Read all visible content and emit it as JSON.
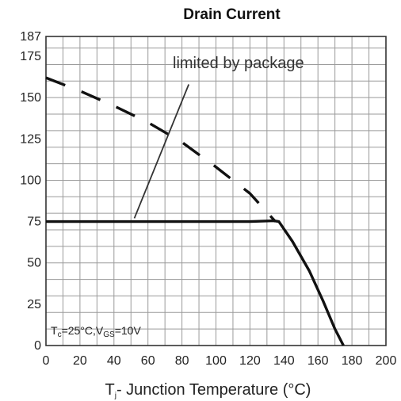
{
  "chart_data": {
    "type": "line",
    "title": "Drain Current",
    "xlabel": "T",
    "xlabel_sub": "j",
    "xlabel_rest": "- Junction Temperature (°C)",
    "xlim": [
      0,
      200
    ],
    "ylim": [
      0,
      187
    ],
    "x_ticks": [
      0,
      20,
      40,
      60,
      80,
      100,
      120,
      140,
      160,
      180,
      200
    ],
    "y_ticks": [
      0,
      25,
      50,
      75,
      100,
      125,
      150,
      175,
      187
    ],
    "x_tick_labels": [
      "0",
      "20",
      "40",
      "60",
      "80",
      "100",
      "120",
      "140",
      "160",
      "180",
      "200"
    ],
    "y_tick_labels": [
      "0",
      "25",
      "50",
      "75",
      "100",
      "125",
      "150",
      "175",
      "187"
    ],
    "grid": true,
    "series": [
      {
        "style": "dashed",
        "color": "#111111",
        "x": [
          0,
          20,
          40,
          60,
          80,
          100,
          120,
          135
        ],
        "y": [
          162,
          154,
          145,
          135,
          123,
          108,
          92,
          75
        ]
      },
      {
        "style": "solid",
        "color": "#111111",
        "x": [
          0,
          20,
          40,
          60,
          80,
          100,
          120,
          134,
          137,
          145,
          155,
          163,
          170,
          175
        ],
        "y": [
          75,
          75,
          75,
          75,
          75,
          75,
          75,
          75.5,
          75,
          63,
          45,
          27,
          10,
          0
        ]
      }
    ],
    "annotations": {
      "package_label": "limited by package",
      "conditions": {
        "tc_symbol": "T",
        "tc_sub": "c",
        "tc_value": "=25°C,V",
        "vgs_sub": "GS",
        "vgs_value": "=10V"
      }
    },
    "pointer_line": {
      "x": [
        52,
        84
      ],
      "y": [
        77,
        158
      ]
    }
  }
}
